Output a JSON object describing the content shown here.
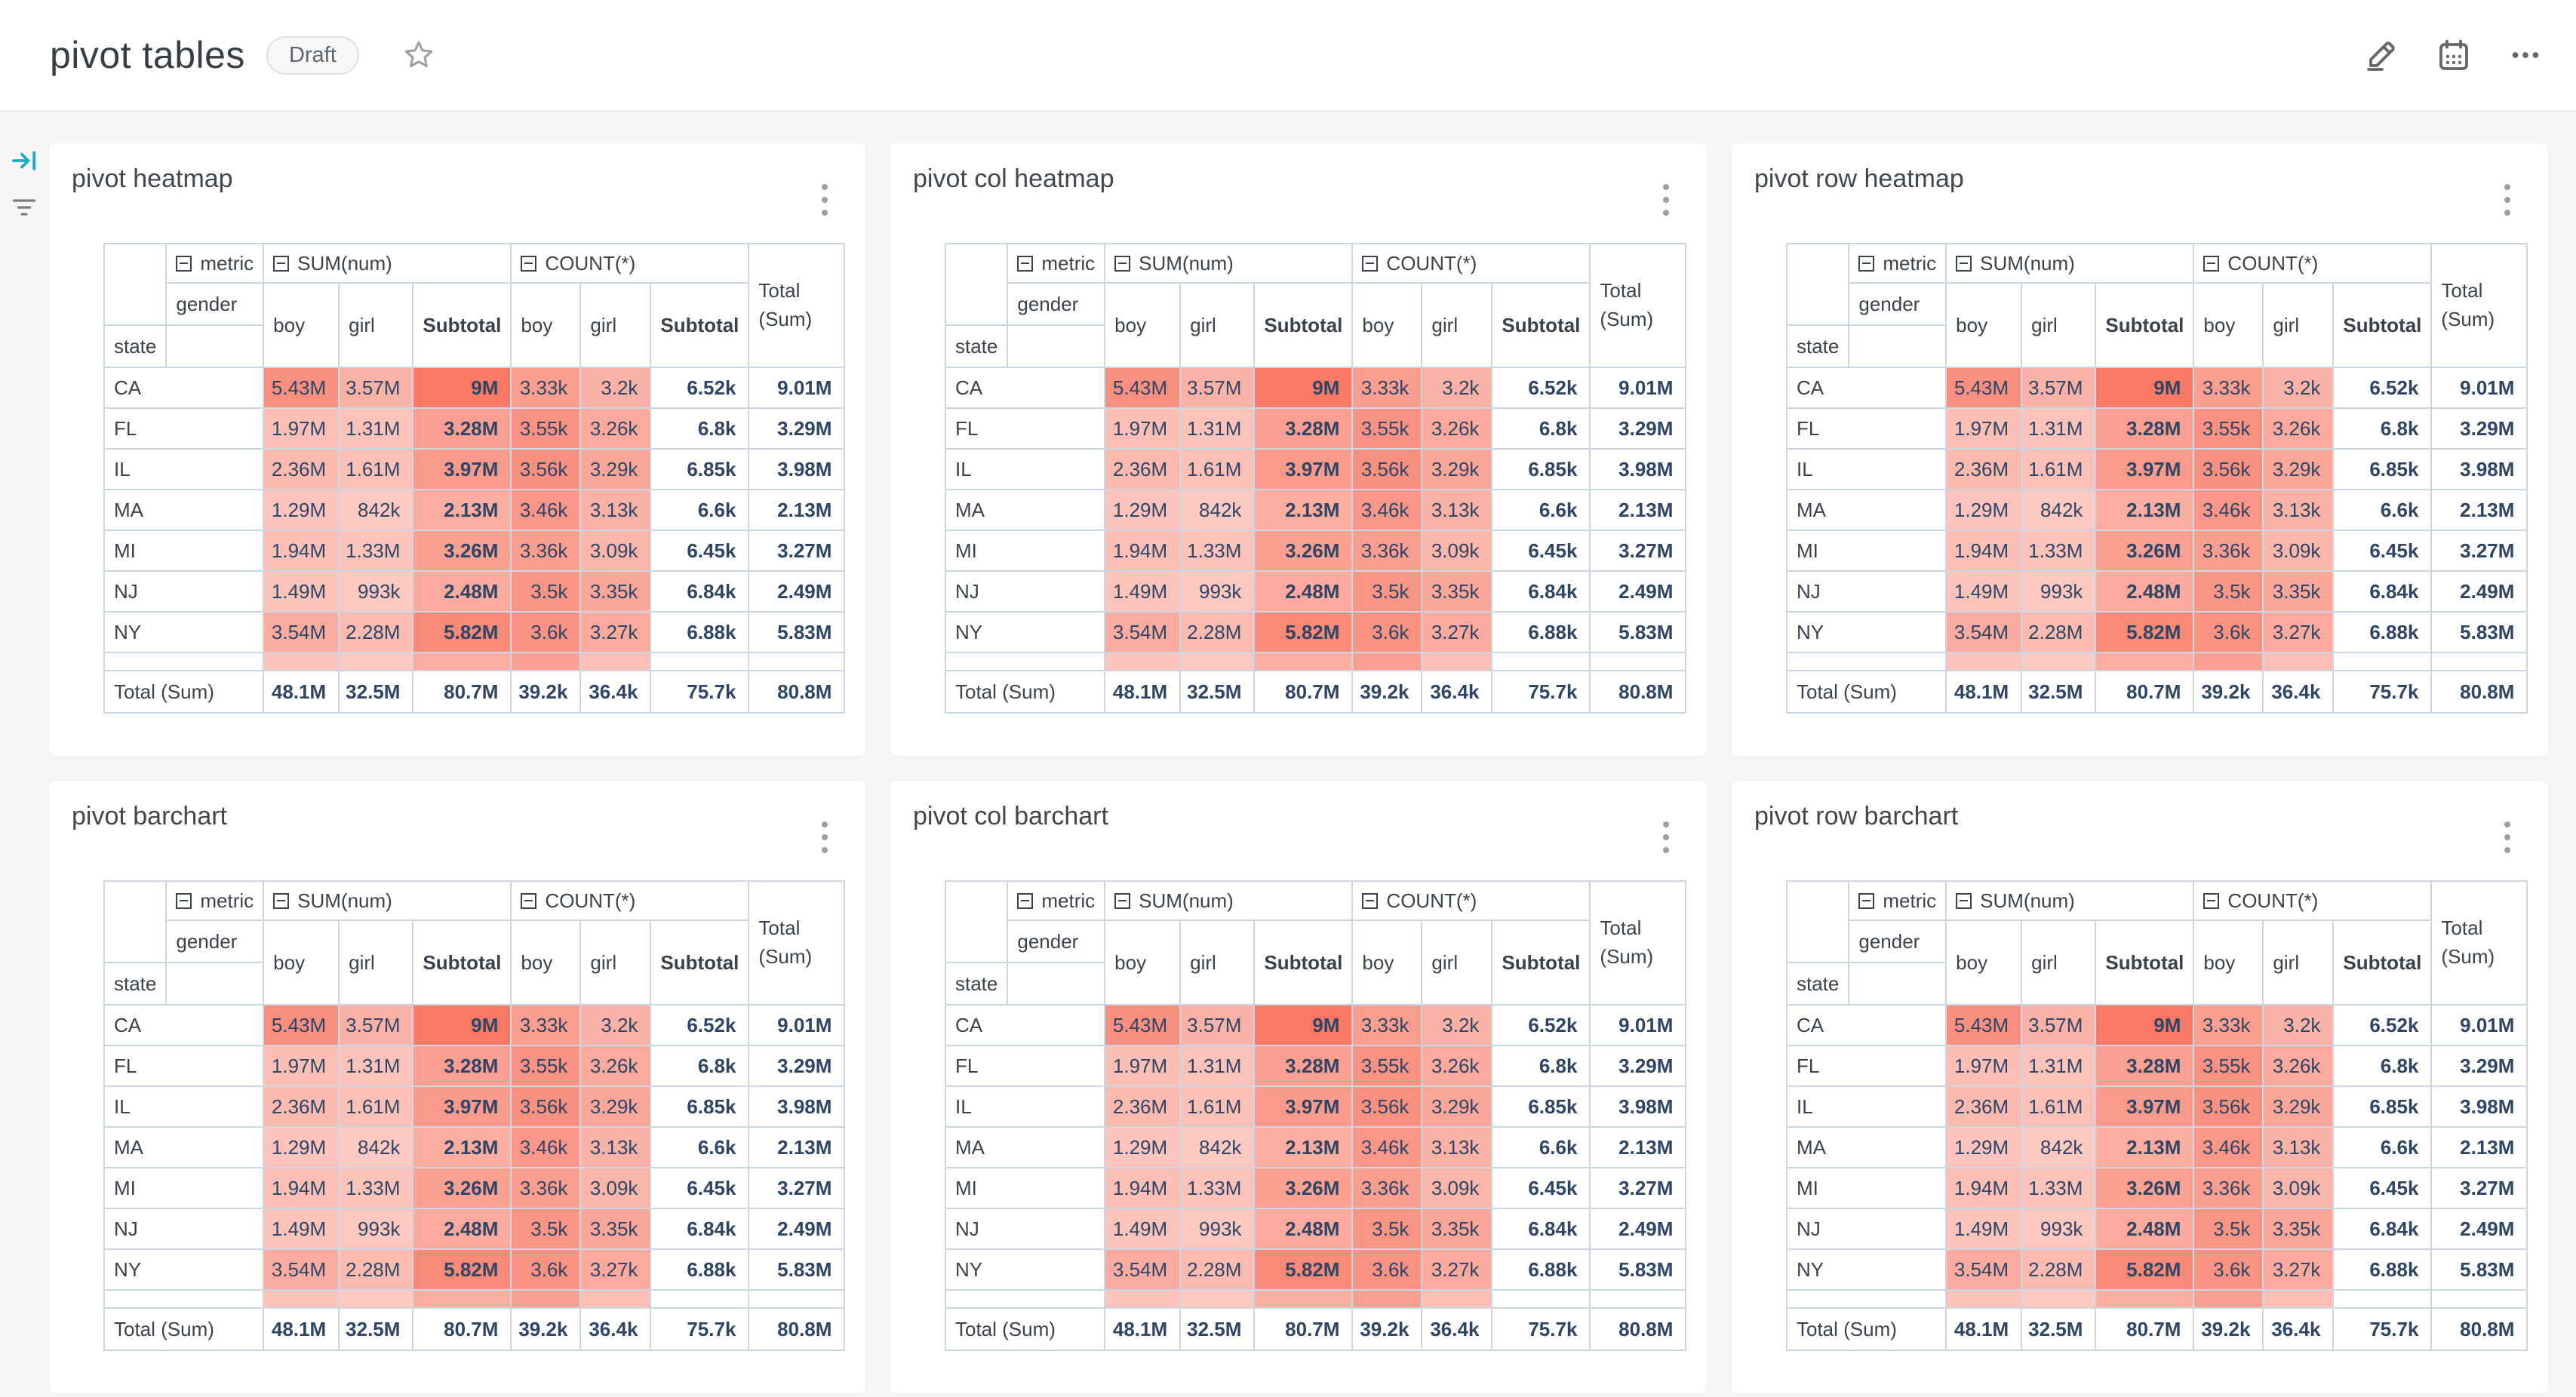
{
  "header": {
    "title": "pivot tables",
    "status_badge": "Draft",
    "icons": [
      "favorite-star",
      "edit-pencil",
      "calendar-schedule",
      "ellipsis-more"
    ]
  },
  "rail": {
    "icons": [
      "expand-filter-bar",
      "filter-list"
    ]
  },
  "colors": {
    "accent_teal": "#20a7c9",
    "heat_max": "#f87a66",
    "table_border": "#cdd6e3",
    "value_text": "#2e4565"
  },
  "cards": [
    {
      "title": "pivot heatmap"
    },
    {
      "title": "pivot col heatmap"
    },
    {
      "title": "pivot row heatmap"
    },
    {
      "title": "pivot barchart"
    },
    {
      "title": "pivot col barchart"
    },
    {
      "title": "pivot row barchart"
    }
  ],
  "pivot": {
    "metric_axis_label": "metric",
    "col_axis_label": "gender",
    "row_axis_label": "state",
    "collapse_icon": "minus-square",
    "metric_groups": [
      "SUM(num)",
      "COUNT(*)"
    ],
    "group_columns": [
      "boy",
      "girl",
      "Subtotal"
    ],
    "total_col_label": "Total (Sum)",
    "total_row_label": "Total (Sum)",
    "rows": [
      {
        "state": "CA",
        "values": [
          "5.43M",
          "3.57M",
          "9M",
          "3.33k",
          "3.2k",
          "6.52k",
          "9.01M"
        ],
        "shades": [
          0.84,
          0.58,
          1.0,
          0.73,
          0.58,
          0,
          0
        ]
      },
      {
        "state": "FL",
        "values": [
          "1.97M",
          "1.31M",
          "3.28M",
          "3.55k",
          "3.26k",
          "6.8k",
          "3.29M"
        ],
        "shades": [
          0.48,
          0.45,
          0.72,
          0.82,
          0.64,
          0,
          0
        ]
      },
      {
        "state": "IL",
        "values": [
          "2.36M",
          "1.61M",
          "3.97M",
          "3.56k",
          "3.29k",
          "6.85k",
          "3.98M"
        ],
        "shades": [
          0.52,
          0.47,
          0.76,
          0.83,
          0.66,
          0,
          0
        ]
      },
      {
        "state": "MA",
        "values": [
          "1.29M",
          "842k",
          "2.13M",
          "3.46k",
          "3.13k",
          "6.6k",
          "2.13M"
        ],
        "shades": [
          0.44,
          0.4,
          0.62,
          0.78,
          0.58,
          0,
          0
        ]
      },
      {
        "state": "MI",
        "values": [
          "1.94M",
          "1.33M",
          "3.26M",
          "3.36k",
          "3.09k",
          "6.45k",
          "3.27M"
        ],
        "shades": [
          0.48,
          0.45,
          0.71,
          0.73,
          0.55,
          0,
          0
        ]
      },
      {
        "state": "NJ",
        "values": [
          "1.49M",
          "993k",
          "2.48M",
          "3.5k",
          "3.35k",
          "6.84k",
          "2.49M"
        ],
        "shades": [
          0.45,
          0.41,
          0.64,
          0.8,
          0.67,
          0,
          0
        ]
      },
      {
        "state": "NY",
        "values": [
          "3.54M",
          "2.28M",
          "5.82M",
          "3.6k",
          "3.27k",
          "6.88k",
          "5.83M"
        ],
        "shades": [
          0.63,
          0.51,
          0.88,
          0.82,
          0.64,
          0,
          0
        ]
      }
    ],
    "spacer_shades": [
      0.45,
      0.4,
      0.62,
      0.72,
      0.48,
      0,
      0
    ],
    "totals": [
      "48.1M",
      "32.5M",
      "80.7M",
      "39.2k",
      "36.4k",
      "75.7k",
      "80.8M"
    ]
  }
}
